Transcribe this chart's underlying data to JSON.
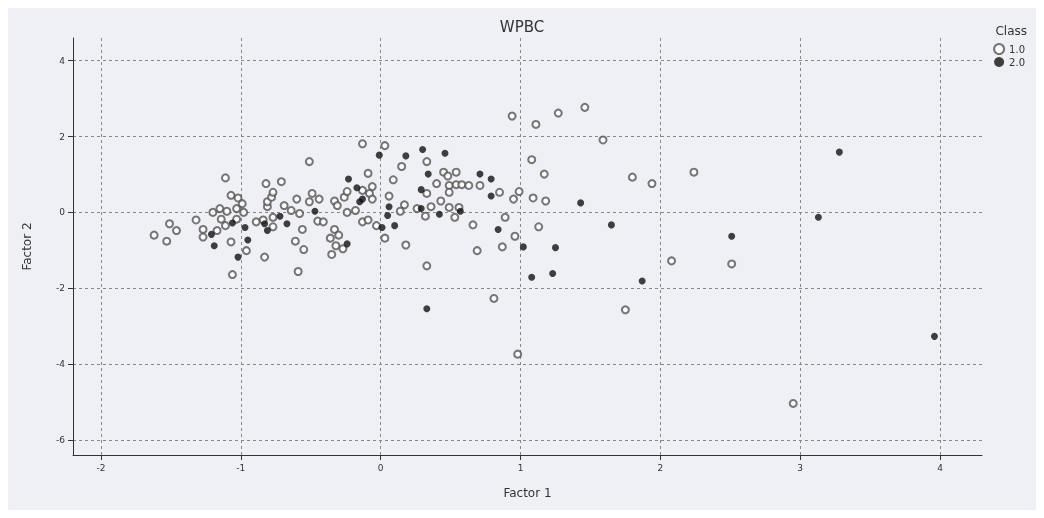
{
  "chart_data": {
    "type": "scatter",
    "title": "WPBC",
    "xlabel": "Factor 1",
    "ylabel": "Factor 2",
    "legend_title": "Class",
    "legend": "top right",
    "grid": true,
    "marker": "circle",
    "xlim": [
      -2.2,
      4.3
    ],
    "xticks": [
      -2,
      -1,
      0,
      1,
      2,
      3,
      4
    ],
    "ylim": [
      -6.4,
      4.6
    ],
    "yticks": [
      -6,
      -4,
      -2,
      0,
      2,
      4
    ],
    "series": [
      {
        "name": "1.0",
        "color": "#555555",
        "x": [
          -1.11,
          -0.51,
          -0.82,
          -0.71,
          -1.07,
          -1.02,
          -0.99,
          -1.03,
          -0.98,
          -1.15,
          -1.1,
          -1.2,
          -1.32,
          -1.51,
          -1.46,
          -1.62,
          -1.53,
          -1.27,
          -1.27,
          -1.17,
          -1.14,
          -1.11,
          -1.03,
          -1.07,
          -0.96,
          -0.83,
          -1.06,
          -0.89,
          -0.84,
          -0.77,
          -0.77,
          -0.81,
          -0.81,
          -0.78,
          -0.77,
          -0.69,
          -0.64,
          -0.6,
          -0.58,
          -0.56,
          -0.61,
          -0.55,
          -0.59,
          -0.51,
          -0.49,
          -0.44,
          -0.45,
          -0.41,
          -0.33,
          -0.31,
          -0.26,
          -0.24,
          -0.24,
          -0.18,
          -0.13,
          -0.09,
          -0.06,
          -0.08,
          -0.06,
          -0.13,
          -0.09,
          -0.03,
          -0.33,
          -0.36,
          -0.3,
          -0.32,
          -0.27,
          -0.35,
          -0.13,
          0.03,
          0.33,
          0.15,
          0.09,
          0.45,
          0.48,
          0.54,
          0.4,
          0.49,
          0.54,
          0.58,
          0.63,
          0.71,
          0.33,
          0.49,
          0.43,
          0.06,
          0.17,
          0.14,
          0.26,
          0.36,
          0.49,
          0.56,
          0.32,
          0.53,
          0.85,
          0.99,
          0.95,
          1.09,
          1.18,
          1.08,
          1.17,
          0.89,
          0.66,
          0.96,
          1.13,
          0.87,
          0.69,
          0.18,
          0.03,
          0.33,
          1.11,
          1.27,
          1.46,
          1.59,
          1.8,
          1.94,
          2.24,
          2.08,
          2.51,
          2.95,
          0.81,
          0.98,
          1.75,
          0.94
        ],
        "values": [
          0.91,
          1.34,
          0.76,
          0.81,
          0.45,
          0.38,
          0.23,
          0.1,
          0,
          0.1,
          0.03,
          0,
          -0.2,
          -0.3,
          -0.48,
          -0.6,
          -0.76,
          -0.45,
          -0.65,
          -0.48,
          -0.18,
          -0.35,
          -0.18,
          -0.78,
          -1.01,
          -1.18,
          -1.64,
          -0.25,
          -0.2,
          -0.38,
          -0.13,
          0.15,
          0.28,
          0.4,
          0.53,
          0.18,
          0.05,
          0.35,
          -0.03,
          -0.45,
          -0.76,
          -0.98,
          -1.56,
          0.28,
          0.5,
          0.35,
          -0.23,
          -0.25,
          0.3,
          0.18,
          0.4,
          0.55,
          0,
          0.05,
          0.58,
          1.03,
          0.68,
          0.5,
          0.35,
          -0.25,
          -0.2,
          -0.35,
          -0.45,
          -0.68,
          -0.6,
          -0.88,
          -0.96,
          -1.11,
          1.81,
          1.76,
          1.34,
          1.21,
          0.86,
          1.06,
          0.96,
          1.06,
          0.76,
          0.71,
          0.73,
          0.73,
          0.71,
          0.71,
          0.5,
          0.53,
          0.3,
          0.43,
          0.2,
          0.03,
          0.1,
          0.15,
          0.13,
          0.13,
          -0.1,
          -0.13,
          0.53,
          0.55,
          0.35,
          0.38,
          0.3,
          1.39,
          1.01,
          -0.13,
          -0.33,
          -0.63,
          -0.38,
          -0.91,
          -1.01,
          -0.86,
          -0.68,
          -1.41,
          2.32,
          2.62,
          2.77,
          1.91,
          0.93,
          0.76,
          1.06,
          -1.28,
          -1.36,
          -5.04,
          -2.27,
          -3.74,
          -2.57,
          2.54
        ]
      },
      {
        "name": "2.0",
        "color": "#111111",
        "x": [
          -0.01,
          -0.23,
          -0.17,
          -0.15,
          -0.13,
          -0.47,
          -0.72,
          -0.67,
          -0.83,
          -0.81,
          -1.06,
          -0.97,
          -0.95,
          -1.02,
          -1.21,
          -1.19,
          -0.24,
          0.01,
          0.18,
          0.3,
          0.46,
          0.34,
          0.29,
          0.71,
          0.79,
          0.79,
          0.06,
          0.05,
          0.29,
          0.42,
          0.57,
          0.1,
          0.84,
          1.02,
          1.25,
          1.08,
          1.23,
          1.43,
          1.65,
          1.87,
          2.51,
          3.28,
          3.13,
          3.96,
          0.33
        ],
        "values": [
          1.51,
          0.88,
          0.65,
          0.28,
          0.35,
          0.03,
          -0.1,
          -0.3,
          -0.3,
          -0.48,
          -0.28,
          -0.4,
          -0.73,
          -1.18,
          -0.58,
          -0.88,
          -0.83,
          -0.4,
          1.49,
          1.66,
          1.56,
          1.01,
          0.6,
          1.01,
          0.88,
          0.43,
          0.15,
          -0.08,
          0.1,
          -0.05,
          0.03,
          -0.35,
          -0.45,
          -0.91,
          -0.93,
          -1.71,
          -1.61,
          0.25,
          -0.33,
          -1.81,
          -0.63,
          1.59,
          -0.13,
          -3.27,
          -2.54
        ]
      }
    ]
  }
}
